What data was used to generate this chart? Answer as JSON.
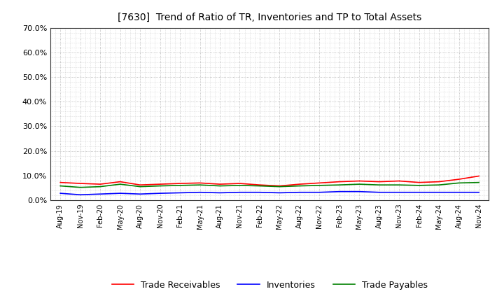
{
  "title": "[7630]  Trend of Ratio of TR, Inventories and TP to Total Assets",
  "x_labels": [
    "Aug-19",
    "Nov-19",
    "Feb-20",
    "May-20",
    "Aug-20",
    "Nov-20",
    "Feb-21",
    "May-21",
    "Aug-21",
    "Nov-21",
    "Feb-22",
    "May-22",
    "Aug-22",
    "Nov-22",
    "Feb-23",
    "May-23",
    "Aug-23",
    "Nov-23",
    "Feb-24",
    "May-24",
    "Aug-24",
    "Nov-24"
  ],
  "trade_receivables": [
    7.2,
    6.8,
    6.5,
    7.5,
    6.2,
    6.5,
    6.8,
    7.0,
    6.5,
    6.8,
    6.2,
    5.8,
    6.5,
    7.0,
    7.5,
    7.8,
    7.5,
    7.8,
    7.2,
    7.5,
    8.5,
    9.8
  ],
  "inventories": [
    2.8,
    2.2,
    2.5,
    2.8,
    2.5,
    2.8,
    3.0,
    3.2,
    3.0,
    3.2,
    3.2,
    3.0,
    3.2,
    3.2,
    3.5,
    3.5,
    3.2,
    3.2,
    3.2,
    3.2,
    3.2,
    3.2
  ],
  "trade_payables": [
    5.8,
    5.2,
    5.5,
    6.5,
    5.5,
    5.8,
    6.0,
    6.2,
    5.8,
    6.0,
    5.8,
    5.5,
    5.8,
    6.0,
    6.2,
    6.5,
    6.2,
    6.2,
    6.0,
    6.2,
    7.0,
    7.2
  ],
  "color_tr": "#FF0000",
  "color_inv": "#0000FF",
  "color_tp": "#008000",
  "ylim": [
    0,
    70
  ],
  "yticks": [
    0,
    10,
    20,
    30,
    40,
    50,
    60,
    70
  ],
  "background_color": "#FFFFFF",
  "plot_bg_color": "#FFFFFF",
  "grid_color": "#888888",
  "legend_labels": [
    "Trade Receivables",
    "Inventories",
    "Trade Payables"
  ]
}
